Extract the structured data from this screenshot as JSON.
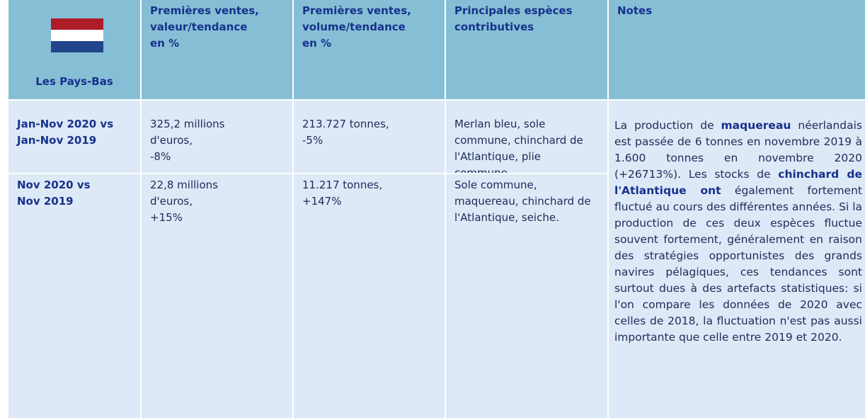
{
  "header": {
    "country": "Les Pays-Bas",
    "columns": [
      [
        "Premières ventes,",
        "valeur/tendance",
        "en %"
      ],
      [
        "Premières ventes,",
        "volume/tendance",
        "en %"
      ],
      [
        "Principales espèces",
        "contributives"
      ],
      [
        "Notes"
      ]
    ]
  },
  "rows": [
    {
      "period": [
        "Jan-Nov 2020 vs",
        "Jan-Nov 2019"
      ],
      "value": [
        "325,2 millions",
        "d'euros,",
        "-8%"
      ],
      "volume": [
        "213.727 tonnes,",
        "-5%"
      ],
      "species": "Merlan bleu, sole commune, chinchard de l'Atlantique, plie commune."
    },
    {
      "period": [
        "Nov 2020 vs",
        "Nov 2019"
      ],
      "value": [
        "22,8 millions",
        "d'euros,",
        "+15%"
      ],
      "volume": [
        "11.217 tonnes,",
        "+147%"
      ],
      "species": "Sole commune, maquereau, chinchard de l'Atlantique, seiche."
    }
  ],
  "notes": [
    "La production de ",
    "maquereau",
    " néerlandais est passée de 6 tonnes en novembre 2019 à 1.600 tonnes en novembre 2020 (+26713%). Les stocks de ",
    "chinchard de l'Atlantique ont",
    " également fortement fluctué au cours des différentes années. Si la production de ces deux espèces fluctue souvent fortement, généralement en raison des stratégies opportunistes des grands navires pélagiques, ces tendances sont surtout dues à des artefacts statistiques: si l'on compare les données de 2020 avec celles de 2018, la fluctuation n'est pas aussi importante que celle entre 2019 et 2020."
  ]
}
